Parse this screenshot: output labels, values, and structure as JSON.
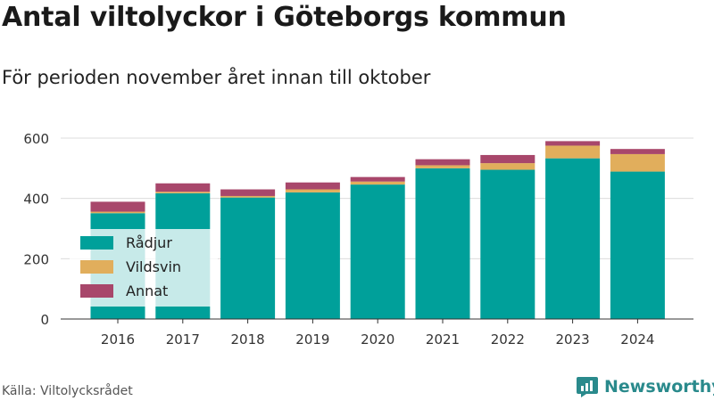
{
  "title": "Antal viltolyckor i Göteborgs kommun",
  "subtitle": "För perioden november året innan till oktober",
  "source": "Källa: Viltolycksrådet",
  "brand": {
    "name": "Newsworthy",
    "icon": "newsworthy-logo-icon",
    "color": "#2a8a8c"
  },
  "chart_data": {
    "type": "bar",
    "stacked": true,
    "categories": [
      "2016",
      "2017",
      "2018",
      "2019",
      "2020",
      "2021",
      "2022",
      "2023",
      "2024"
    ],
    "series": [
      {
        "name": "Rådjur",
        "color": "#00a09a",
        "values": [
          351,
          417,
          403,
          420,
          446,
          500,
          495,
          533,
          489
        ]
      },
      {
        "name": "Vildsvin",
        "color": "#e1ae5c",
        "values": [
          5,
          5,
          5,
          10,
          10,
          10,
          22,
          42,
          58
        ]
      },
      {
        "name": "Annat",
        "color": "#a8476b",
        "values": [
          33,
          28,
          22,
          23,
          15,
          20,
          27,
          15,
          17
        ]
      }
    ],
    "ylim": [
      0,
      600
    ],
    "yticks": [
      0,
      200,
      400,
      600
    ],
    "xlabel": "",
    "ylabel": "",
    "grid": true,
    "legend": "bottom-left"
  }
}
